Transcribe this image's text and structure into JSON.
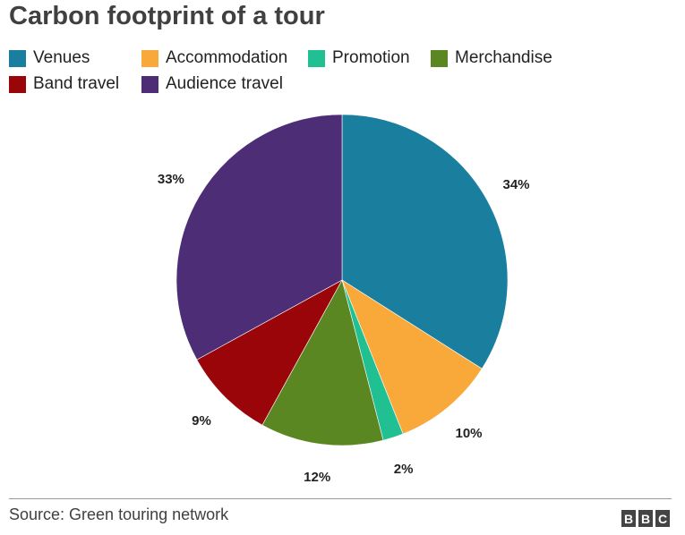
{
  "title": "Carbon footprint of a tour",
  "source": "Source: Green touring network",
  "logo_text": "BBC",
  "chart_data": {
    "type": "pie",
    "title": "Carbon footprint of a tour",
    "start": "12 o'clock",
    "direction": "clockwise",
    "legend_position": "top",
    "slices": [
      {
        "label": "Venues",
        "value": 34,
        "value_label": "34%",
        "color": "#1a7f9f"
      },
      {
        "label": "Accommodation",
        "value": 10,
        "value_label": "10%",
        "color": "#f9a93a"
      },
      {
        "label": "Promotion",
        "value": 2,
        "value_label": "2%",
        "color": "#20c093"
      },
      {
        "label": "Merchandise",
        "value": 12,
        "value_label": "12%",
        "color": "#5b8723"
      },
      {
        "label": "Band travel",
        "value": 9,
        "value_label": "9%",
        "color": "#9a0509"
      },
      {
        "label": "Audience travel",
        "value": 33,
        "value_label": "33%",
        "color": "#4c2d76"
      }
    ]
  }
}
